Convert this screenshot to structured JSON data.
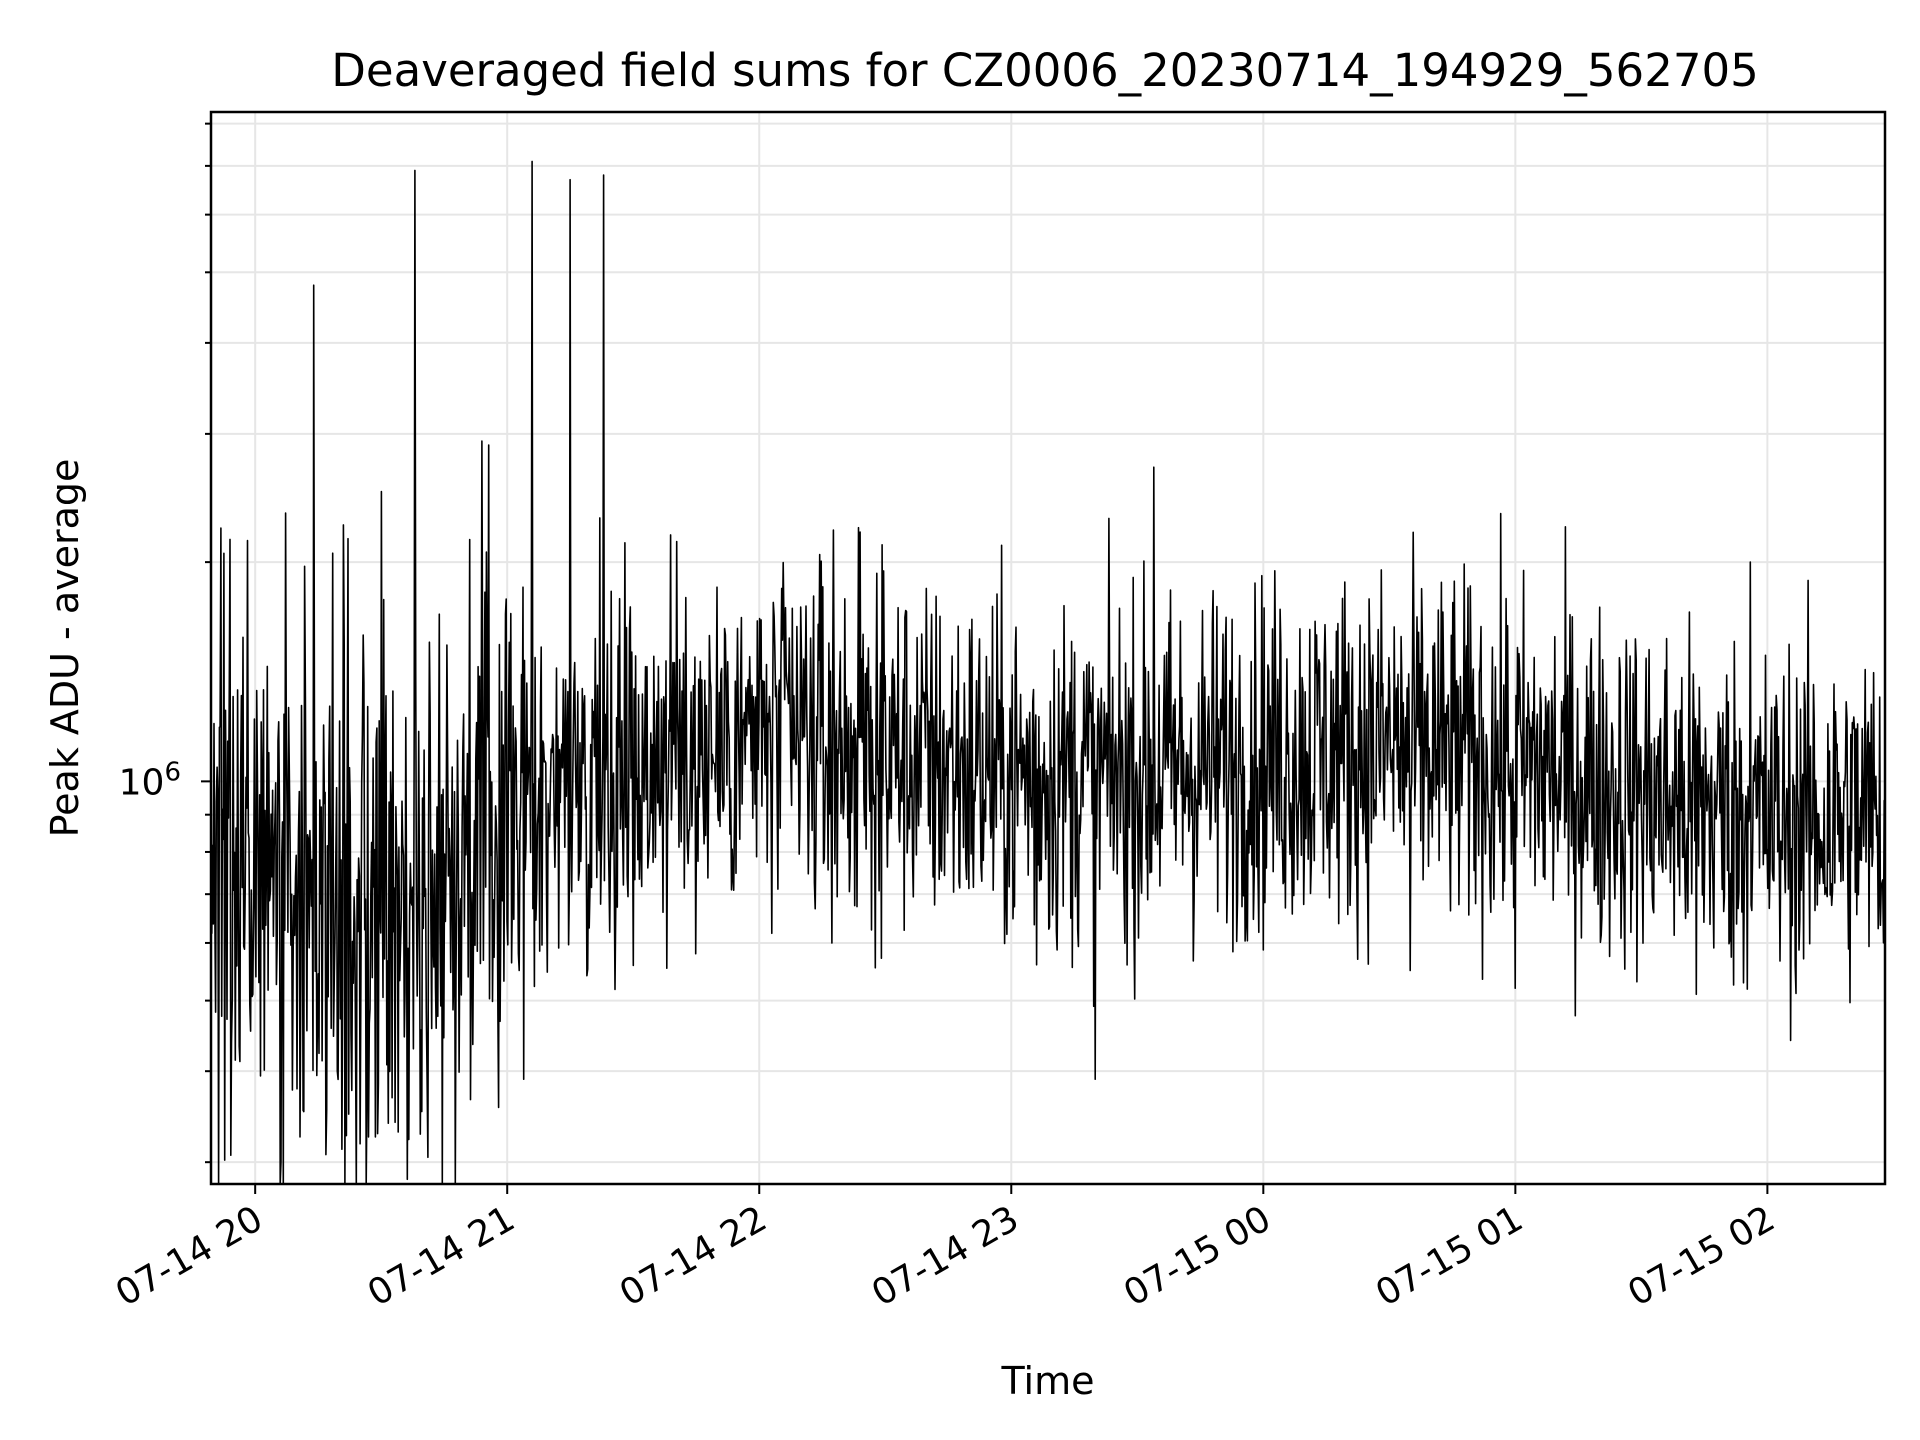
{
  "chart_data": {
    "type": "line",
    "title": "Deaveraged field sums for CZ0006_20230714_194929_562705",
    "xlabel": "Time",
    "ylabel": "Peak ADU - average",
    "yscale": "log",
    "grid": true,
    "line_color": "#000000",
    "xlim": [
      "2023-07-14 19:49:29",
      "2023-07-15 02:28:00"
    ],
    "ylim": [
      280000,
      8300000
    ],
    "x_ticks": [
      {
        "t": "2023-07-14 20:00",
        "label": "07-14 20"
      },
      {
        "t": "2023-07-14 21:00",
        "label": "07-14 21"
      },
      {
        "t": "2023-07-14 22:00",
        "label": "07-14 22"
      },
      {
        "t": "2023-07-14 23:00",
        "label": "07-14 23"
      },
      {
        "t": "2023-07-15 00:00",
        "label": "07-15 00"
      },
      {
        "t": "2023-07-15 01:00",
        "label": "07-15 01"
      },
      {
        "t": "2023-07-15 02:00",
        "label": "07-15 02"
      }
    ],
    "y_major_ticks": [
      {
        "value": 1000000,
        "label": "10",
        "exponent": "6"
      }
    ],
    "y_minor_ticks": [
      300000,
      400000,
      500000,
      600000,
      700000,
      800000,
      900000,
      2000000,
      3000000,
      4000000,
      5000000,
      6000000,
      7000000,
      8000000
    ],
    "baseline": [
      {
        "t": "2023-07-14 19:49",
        "value": 850000
      },
      {
        "t": "2023-07-14 20:00",
        "value": 800000
      },
      {
        "t": "2023-07-14 20:20",
        "value": 700000
      },
      {
        "t": "2023-07-14 20:30",
        "value": 680000
      },
      {
        "t": "2023-07-14 20:40",
        "value": 720000
      },
      {
        "t": "2023-07-14 21:00",
        "value": 920000
      },
      {
        "t": "2023-07-14 21:20",
        "value": 1020000
      },
      {
        "t": "2023-07-14 21:40",
        "value": 1100000
      },
      {
        "t": "2023-07-14 22:00",
        "value": 1150000
      },
      {
        "t": "2023-07-14 22:30",
        "value": 1100000
      },
      {
        "t": "2023-07-14 23:00",
        "value": 1020000
      },
      {
        "t": "2023-07-14 23:30",
        "value": 1020000
      },
      {
        "t": "2023-07-15 00:00",
        "value": 1080000
      },
      {
        "t": "2023-07-15 00:30",
        "value": 1120000
      },
      {
        "t": "2023-07-15 01:00",
        "value": 1060000
      },
      {
        "t": "2023-07-15 01:30",
        "value": 960000
      },
      {
        "t": "2023-07-15 02:00",
        "value": 880000
      },
      {
        "t": "2023-07-15 02:28",
        "value": 900000
      }
    ],
    "spikes": [
      {
        "t": "2023-07-14 20:14",
        "value": 4800000
      },
      {
        "t": "2023-07-14 20:38",
        "value": 6900000
      },
      {
        "t": "2023-07-14 21:06",
        "value": 7100000
      },
      {
        "t": "2023-07-14 21:15",
        "value": 6700000
      },
      {
        "t": "2023-07-14 21:23",
        "value": 6800000
      },
      {
        "t": "2023-07-14 20:30",
        "value": 2500000
      },
      {
        "t": "2023-07-14 21:22",
        "value": 2300000
      },
      {
        "t": "2023-07-14 23:34",
        "value": 2700000
      },
      {
        "t": "2023-07-14 22:24",
        "value": 2200000
      },
      {
        "t": "2023-07-15 01:56",
        "value": 2000000
      },
      {
        "t": "2023-07-14 20:21",
        "value": 2250000
      },
      {
        "t": "2023-07-14 23:20",
        "value": 390000
      },
      {
        "t": "2023-07-14 21:04",
        "value": 390000
      },
      {
        "t": "2023-07-14 20:27",
        "value": 325000
      },
      {
        "t": "2023-07-14 20:34",
        "value": 330000
      },
      {
        "t": "2023-07-15 01:00",
        "value": 520000
      },
      {
        "t": "2023-07-15 01:43",
        "value": 510000
      },
      {
        "t": "2023-07-15 00:35",
        "value": 550000
      },
      {
        "t": "2023-07-14 23:06",
        "value": 560000
      }
    ]
  }
}
